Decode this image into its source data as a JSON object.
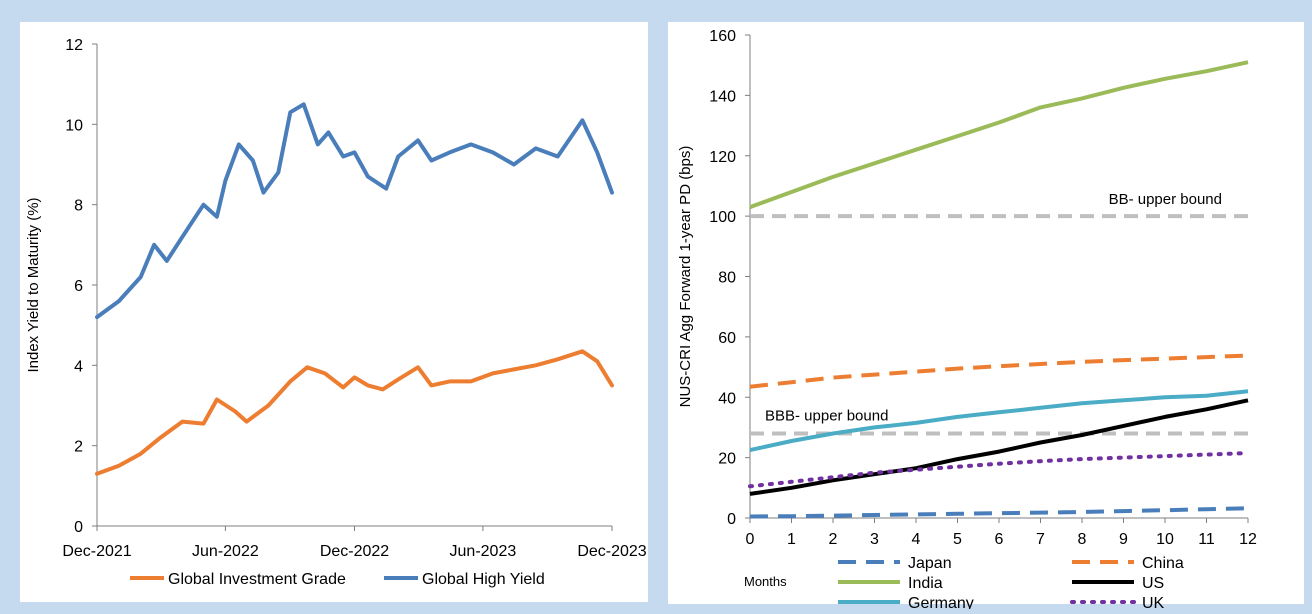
{
  "chart_data": [
    {
      "type": "line",
      "xlabel": "",
      "ylabel": "Index Yield to Maturity (%)",
      "xlim": [
        "2021-12-01",
        "2023-12-01"
      ],
      "ylim": [
        0,
        12
      ],
      "yticks": [
        0,
        2,
        4,
        6,
        8,
        10,
        12
      ],
      "xtick_labels": [
        {
          "date": "2021-12-01",
          "label": "Dec-2021"
        },
        {
          "date": "2022-06-01",
          "label": "Jun-2022"
        },
        {
          "date": "2022-12-01",
          "label": "Dec-2022"
        },
        {
          "date": "2023-06-01",
          "label": "Jun-2023"
        },
        {
          "date": "2023-12-01",
          "label": "Dec-2023"
        }
      ],
      "legend_position": "bottom",
      "grid": false,
      "series": [
        {
          "name": "Global Investment Grade",
          "color": "#ed7d31",
          "points": [
            {
              "x": "2021-12-01",
              "y": 1.3
            },
            {
              "x": "2022-01-01",
              "y": 1.5
            },
            {
              "x": "2022-02-01",
              "y": 1.8
            },
            {
              "x": "2022-03-01",
              "y": 2.2
            },
            {
              "x": "2022-04-01",
              "y": 2.6
            },
            {
              "x": "2022-05-01",
              "y": 2.55
            },
            {
              "x": "2022-05-20",
              "y": 3.15
            },
            {
              "x": "2022-06-15",
              "y": 2.85
            },
            {
              "x": "2022-07-01",
              "y": 2.6
            },
            {
              "x": "2022-08-01",
              "y": 3.0
            },
            {
              "x": "2022-09-01",
              "y": 3.6
            },
            {
              "x": "2022-09-25",
              "y": 3.95
            },
            {
              "x": "2022-10-20",
              "y": 3.8
            },
            {
              "x": "2022-11-15",
              "y": 3.45
            },
            {
              "x": "2022-12-01",
              "y": 3.7
            },
            {
              "x": "2022-12-20",
              "y": 3.5
            },
            {
              "x": "2023-01-10",
              "y": 3.4
            },
            {
              "x": "2023-02-01",
              "y": 3.65
            },
            {
              "x": "2023-03-01",
              "y": 3.95
            },
            {
              "x": "2023-03-20",
              "y": 3.5
            },
            {
              "x": "2023-04-15",
              "y": 3.6
            },
            {
              "x": "2023-05-15",
              "y": 3.6
            },
            {
              "x": "2023-06-15",
              "y": 3.8
            },
            {
              "x": "2023-07-15",
              "y": 3.9
            },
            {
              "x": "2023-08-15",
              "y": 4.0
            },
            {
              "x": "2023-09-15",
              "y": 4.15
            },
            {
              "x": "2023-10-20",
              "y": 4.35
            },
            {
              "x": "2023-11-10",
              "y": 4.1
            },
            {
              "x": "2023-12-01",
              "y": 3.5
            }
          ]
        },
        {
          "name": "Global High Yield",
          "color": "#4a7ebb",
          "points": [
            {
              "x": "2021-12-01",
              "y": 5.2
            },
            {
              "x": "2022-01-01",
              "y": 5.6
            },
            {
              "x": "2022-02-01",
              "y": 6.2
            },
            {
              "x": "2022-02-20",
              "y": 7.0
            },
            {
              "x": "2022-03-10",
              "y": 6.6
            },
            {
              "x": "2022-04-01",
              "y": 7.2
            },
            {
              "x": "2022-05-01",
              "y": 8.0
            },
            {
              "x": "2022-05-20",
              "y": 7.7
            },
            {
              "x": "2022-06-01",
              "y": 8.6
            },
            {
              "x": "2022-06-20",
              "y": 9.5
            },
            {
              "x": "2022-07-10",
              "y": 9.1
            },
            {
              "x": "2022-07-25",
              "y": 8.3
            },
            {
              "x": "2022-08-15",
              "y": 8.8
            },
            {
              "x": "2022-09-01",
              "y": 10.3
            },
            {
              "x": "2022-09-20",
              "y": 10.5
            },
            {
              "x": "2022-10-10",
              "y": 9.5
            },
            {
              "x": "2022-10-25",
              "y": 9.8
            },
            {
              "x": "2022-11-15",
              "y": 9.2
            },
            {
              "x": "2022-12-01",
              "y": 9.3
            },
            {
              "x": "2022-12-20",
              "y": 8.7
            },
            {
              "x": "2023-01-15",
              "y": 8.4
            },
            {
              "x": "2023-02-01",
              "y": 9.2
            },
            {
              "x": "2023-03-01",
              "y": 9.6
            },
            {
              "x": "2023-03-20",
              "y": 9.1
            },
            {
              "x": "2023-04-15",
              "y": 9.3
            },
            {
              "x": "2023-05-15",
              "y": 9.5
            },
            {
              "x": "2023-06-15",
              "y": 9.3
            },
            {
              "x": "2023-07-15",
              "y": 9.0
            },
            {
              "x": "2023-08-15",
              "y": 9.4
            },
            {
              "x": "2023-09-15",
              "y": 9.2
            },
            {
              "x": "2023-10-20",
              "y": 10.1
            },
            {
              "x": "2023-11-10",
              "y": 9.3
            },
            {
              "x": "2023-12-01",
              "y": 8.3
            }
          ]
        }
      ]
    },
    {
      "type": "line",
      "xlabel": "Months",
      "ylabel": "NUS-CRI Agg Forward 1-year PD (bps)",
      "xlim": [
        0,
        12
      ],
      "ylim": [
        0,
        160
      ],
      "xticks": [
        0,
        1,
        2,
        3,
        4,
        5,
        6,
        7,
        8,
        9,
        10,
        11,
        12
      ],
      "yticks": [
        0,
        20,
        40,
        60,
        80,
        100,
        120,
        140,
        160
      ],
      "legend_position": "bottom",
      "grid": false,
      "x": [
        0,
        1,
        2,
        3,
        4,
        5,
        6,
        7,
        8,
        9,
        10,
        11,
        12
      ],
      "series": [
        {
          "name": "Japan",
          "color": "#4a7ebb",
          "dash": "dashed",
          "values": [
            0.5,
            0.6,
            0.8,
            1.0,
            1.2,
            1.4,
            1.6,
            1.8,
            2.0,
            2.3,
            2.6,
            2.9,
            3.2
          ]
        },
        {
          "name": "China",
          "color": "#ed7d31",
          "dash": "dashed",
          "values": [
            43.5,
            45,
            46.5,
            47.5,
            48.5,
            49.5,
            50.3,
            51,
            51.7,
            52.3,
            52.8,
            53.3,
            53.8
          ]
        },
        {
          "name": "India",
          "color": "#9bbb59",
          "dash": "solid",
          "values": [
            103,
            108,
            113,
            117.5,
            122,
            126.5,
            131,
            136,
            139,
            142.5,
            145.5,
            148,
            151
          ]
        },
        {
          "name": "US",
          "color": "#000000",
          "dash": "solid",
          "values": [
            8,
            10,
            12.5,
            14.5,
            16.5,
            19.5,
            22,
            25,
            27.5,
            30.5,
            33.5,
            36,
            39
          ]
        },
        {
          "name": "Germany",
          "color": "#4bacc6",
          "dash": "solid",
          "values": [
            22.5,
            25.5,
            28,
            30,
            31.5,
            33.5,
            35,
            36.5,
            38,
            39,
            40,
            40.5,
            42
          ]
        },
        {
          "name": "UK",
          "color": "#7030a0",
          "dash": "dotted",
          "values": [
            10.5,
            12,
            13.5,
            15,
            16,
            17,
            18,
            18.8,
            19.5,
            20,
            20.5,
            21,
            21.5
          ]
        }
      ],
      "reference_lines": [
        {
          "y": 100,
          "label": "BB- upper bound",
          "color": "#bfbfbf"
        },
        {
          "y": 28,
          "label": "BBB- upper bound",
          "color": "#bfbfbf"
        }
      ]
    }
  ]
}
